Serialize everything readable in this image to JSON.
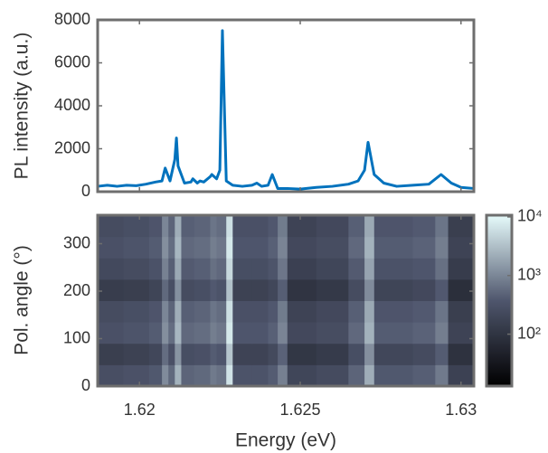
{
  "chart_data": [
    {
      "type": "line",
      "ylabel": "PL intensity (a.u.)",
      "x": [
        1.6187,
        1.619,
        1.6193,
        1.6196,
        1.6199,
        1.6202,
        1.6205,
        1.6207,
        1.6208,
        1.62095,
        1.6211,
        1.62115,
        1.6212,
        1.6214,
        1.6216,
        1.62166,
        1.6218,
        1.62188,
        1.622,
        1.6222,
        1.62225,
        1.6224,
        1.6225,
        1.62258,
        1.6227,
        1.6229,
        1.6232,
        1.6235,
        1.62365,
        1.6238,
        1.624,
        1.62413,
        1.6243,
        1.6246,
        1.625,
        1.6255,
        1.626,
        1.6265,
        1.6268,
        1.627,
        1.62711,
        1.6273,
        1.6276,
        1.628,
        1.6285,
        1.629,
        1.62938,
        1.6297,
        1.63,
        1.6304
      ],
      "values": [
        250,
        300,
        250,
        300,
        280,
        350,
        450,
        500,
        1100,
        500,
        1500,
        2500,
        1200,
        400,
        450,
        600,
        400,
        500,
        450,
        700,
        800,
        600,
        1000,
        7500,
        500,
        300,
        250,
        300,
        400,
        250,
        300,
        800,
        150,
        150,
        120,
        200,
        250,
        350,
        500,
        1000,
        2300,
        800,
        400,
        250,
        300,
        350,
        800,
        400,
        200,
        150
      ],
      "color": "#0072bd",
      "xlim": [
        1.6187,
        1.6304
      ],
      "xticks": [
        1.62,
        1.625,
        1.63
      ],
      "ylim": [
        0,
        8000
      ],
      "yticks": [
        0,
        2000,
        4000,
        6000,
        8000
      ]
    },
    {
      "type": "heatmap",
      "xlabel": "Energy (eV)",
      "ylabel": "Pol. angle (°)",
      "xbins": [
        1.6187,
        1.6195,
        1.6203,
        1.6207,
        1.6209,
        1.6211,
        1.6213,
        1.6217,
        1.6222,
        1.6224,
        1.6227,
        1.6229,
        1.6235,
        1.624,
        1.6243,
        1.6246,
        1.6255,
        1.6265,
        1.627,
        1.6273,
        1.6285,
        1.6292,
        1.6296,
        1.6304
      ],
      "ybins": [
        0,
        45,
        90,
        135,
        180,
        225,
        270,
        315,
        360
      ],
      "z": [
        [
          275,
          310,
          385,
          1100,
          550,
          2420,
          495,
          550,
          770,
          660,
          6600,
          330,
          330,
          420,
          880,
          200,
          240,
          495,
          2200,
          385,
          440,
          770,
          165
        ],
        [
          150,
          170,
          210,
          600,
          300,
          1320,
          270,
          300,
          420,
          360,
          3600,
          180,
          180,
          230,
          480,
          110,
          130,
          270,
          1200,
          210,
          240,
          420,
          90
        ],
        [
          300,
          340,
          420,
          1200,
          600,
          2640,
          540,
          600,
          840,
          720,
          7200,
          360,
          360,
          460,
          960,
          220,
          260,
          540,
          2400,
          420,
          480,
          840,
          180
        ],
        [
          250,
          280,
          350,
          1000,
          500,
          2200,
          450,
          500,
          700,
          600,
          6000,
          300,
          300,
          380,
          800,
          180,
          220,
          450,
          2000,
          350,
          400,
          700,
          150
        ],
        [
          140,
          150,
          190,
          550,
          280,
          1210,
          250,
          280,
          390,
          330,
          3300,
          170,
          170,
          210,
          440,
          100,
          120,
          250,
          1100,
          190,
          220,
          390,
          80
        ],
        [
          225,
          250,
          315,
          900,
          450,
          1980,
          405,
          450,
          630,
          540,
          5400,
          270,
          270,
          340,
          720,
          160,
          200,
          405,
          1800,
          315,
          360,
          630,
          135
        ],
        [
          300,
          340,
          420,
          1200,
          600,
          2640,
          540,
          600,
          840,
          720,
          7200,
          360,
          360,
          460,
          960,
          220,
          260,
          540,
          2400,
          420,
          480,
          840,
          180
        ],
        [
          250,
          280,
          350,
          1000,
          500,
          2200,
          450,
          500,
          700,
          600,
          6000,
          300,
          300,
          380,
          800,
          180,
          220,
          450,
          2000,
          350,
          400,
          700,
          150
        ]
      ],
      "xlim": [
        1.6187,
        1.6304
      ],
      "xticks": [
        1.62,
        1.625,
        1.63
      ],
      "ylim": [
        0,
        360
      ],
      "yticks": [
        0,
        100,
        200,
        300
      ],
      "colormap": [
        "#000000",
        "#4f566d",
        "#e6fbfb"
      ],
      "colorbar": {
        "scale": "log",
        "lim": [
          13,
          10700
        ],
        "ticks": [
          {
            "value": 100,
            "label": "10²"
          },
          {
            "value": 1000,
            "label": "10³"
          },
          {
            "value": 10000,
            "label": "10⁴"
          }
        ]
      }
    }
  ]
}
